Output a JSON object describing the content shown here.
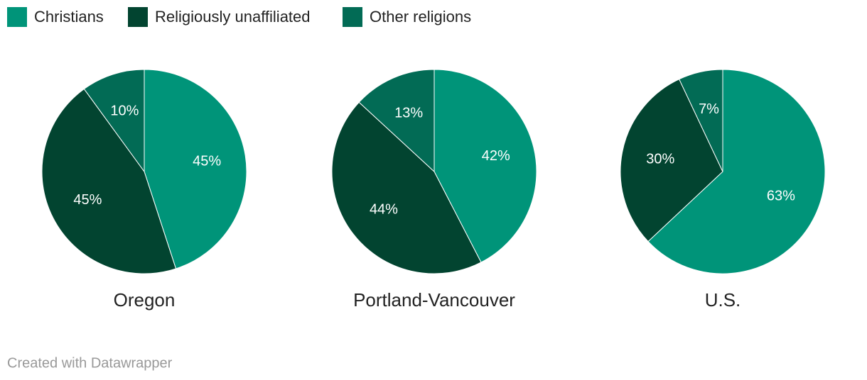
{
  "chart_data": [
    {
      "type": "pie",
      "title": "Oregon",
      "categories": [
        "Christians",
        "Religiously unaffiliated",
        "Other religions"
      ],
      "values": [
        45,
        45,
        10
      ],
      "value_labels": [
        "45%",
        "45%",
        "10%"
      ],
      "colors": [
        "#009479",
        "#024430",
        "#026b55"
      ]
    },
    {
      "type": "pie",
      "title": "Portland-Vancouver",
      "categories": [
        "Christians",
        "Religiously unaffiliated",
        "Other religions"
      ],
      "values": [
        42,
        44,
        13
      ],
      "value_labels": [
        "42%",
        "44%",
        "13%"
      ],
      "colors": [
        "#009479",
        "#024430",
        "#026b55"
      ]
    },
    {
      "type": "pie",
      "title": "U.S.",
      "categories": [
        "Christians",
        "Religiously unaffiliated",
        "Other religions"
      ],
      "values": [
        63,
        30,
        7
      ],
      "value_labels": [
        "63%",
        "30%",
        "7%"
      ],
      "colors": [
        "#009479",
        "#024430",
        "#026b55"
      ]
    }
  ],
  "credit": "Created with Datawrapper"
}
